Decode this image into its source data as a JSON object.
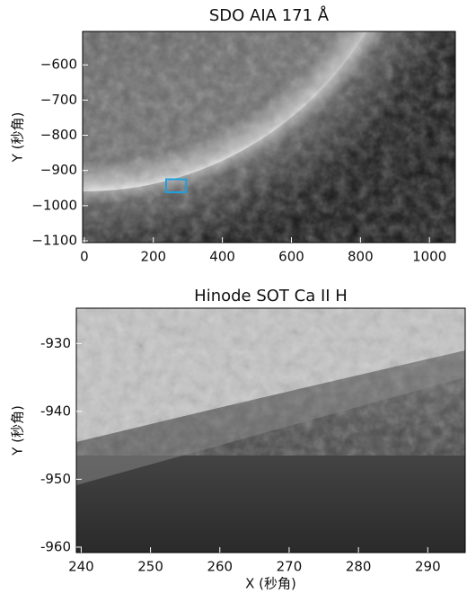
{
  "chart_data": [
    {
      "type": "image",
      "title": "SDO AIA 171 Å",
      "ylabel": "Y (秒角)",
      "xlim": [
        -5,
        1075
      ],
      "ylim": [
        -1105,
        -505
      ],
      "xticks": [
        0,
        200,
        400,
        600,
        800,
        1000
      ],
      "yticks": [
        {
          "value": -600,
          "label": "−600"
        },
        {
          "value": -700,
          "label": "−700"
        },
        {
          "value": -800,
          "label": "−800"
        },
        {
          "value": -900,
          "label": "−900"
        },
        {
          "value": -1000,
          "label": "−1000"
        },
        {
          "value": -1100,
          "label": "−1100"
        }
      ],
      "box": {
        "x": [
          237,
          295
        ],
        "y": [
          -962,
          -925
        ],
        "color": "#1ea0e0"
      }
    },
    {
      "type": "image",
      "title": "Hinode SOT Ca II H",
      "xlabel": "X (秒角)",
      "ylabel": "Y (秒角)",
      "xlim": [
        239.3,
        295.4
      ],
      "ylim": [
        -960.8,
        -924.8
      ],
      "xticks": [
        240,
        250,
        260,
        270,
        280,
        290
      ],
      "yticks": [
        -960,
        -950,
        -940,
        -930
      ]
    }
  ]
}
